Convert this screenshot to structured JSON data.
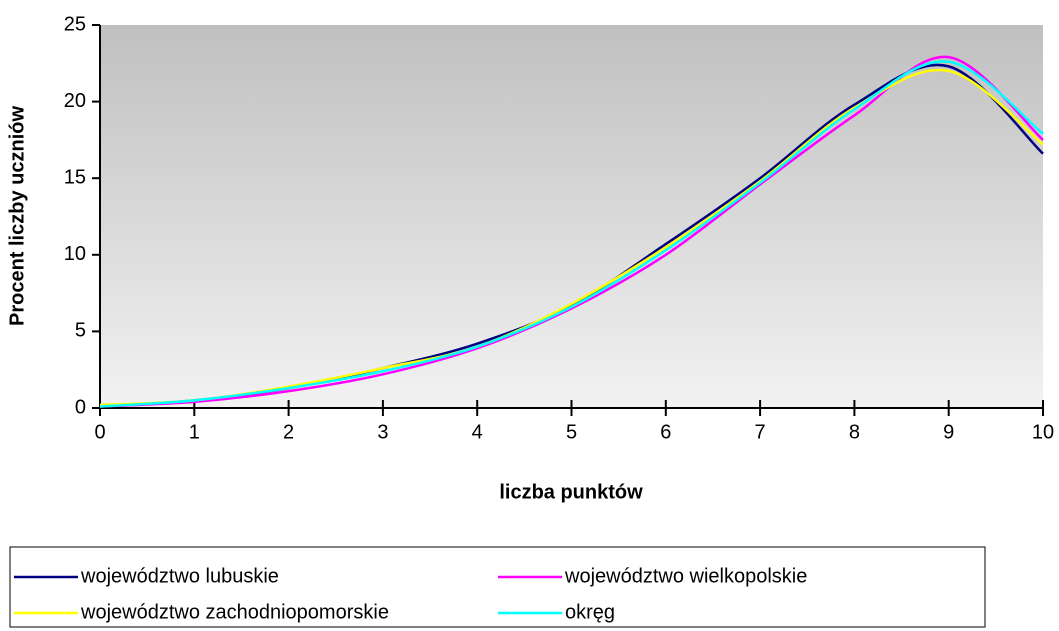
{
  "chart_data": {
    "type": "line",
    "x_label": "liczba punktów",
    "y_label": "Procent liczby uczniów",
    "x": [
      0,
      1,
      2,
      3,
      4,
      5,
      6,
      7,
      8,
      9,
      10
    ],
    "xlim": [
      0,
      10
    ],
    "xticks": [
      0,
      1,
      2,
      3,
      4,
      5,
      6,
      7,
      8,
      9,
      10
    ],
    "ylim": [
      0,
      25
    ],
    "yticks": [
      0,
      5,
      10,
      15,
      20,
      25
    ],
    "smooth": true,
    "series": [
      {
        "name": "województwo lubuskie",
        "color": "#000080",
        "values": [
          0.1,
          0.5,
          1.3,
          2.6,
          4.2,
          6.7,
          10.7,
          15.0,
          19.8,
          22.3,
          16.6
        ]
      },
      {
        "name": "województwo wielkopolskie",
        "color": "#ff00ff",
        "values": [
          0.1,
          0.4,
          1.1,
          2.2,
          3.9,
          6.5,
          10.0,
          14.6,
          19.1,
          22.9,
          17.5
        ]
      },
      {
        "name": "województwo zachodniopomorskie",
        "color": "#ffff00",
        "values": [
          0.2,
          0.5,
          1.4,
          2.6,
          4.0,
          6.8,
          10.5,
          14.8,
          19.6,
          22.0,
          17.2
        ]
      },
      {
        "name": "okręg",
        "color": "#00ffff",
        "values": [
          0.1,
          0.5,
          1.3,
          2.4,
          4.0,
          6.6,
          10.3,
          14.7,
          19.5,
          22.6,
          17.9
        ]
      }
    ]
  }
}
